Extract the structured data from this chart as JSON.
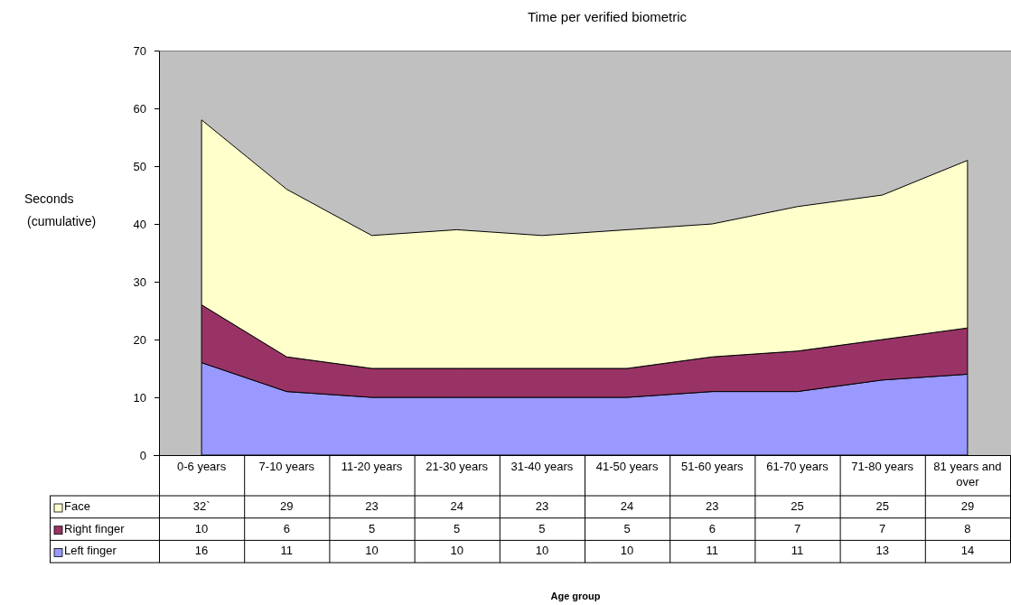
{
  "chart_data": {
    "type": "area",
    "title": "Time per verified biometric",
    "ylabel": "Seconds\n(cumulative)",
    "annotations": [
      "Age group"
    ],
    "categories": [
      "0-6 years",
      "7-10 years",
      "11-20 years",
      "21-30 years",
      "31-40 years",
      "41-50 years",
      "51-60 years",
      "61-70 years",
      "71-80 years",
      "81 years and over"
    ],
    "stacked": true,
    "ylim": [
      0,
      70
    ],
    "yticks": [
      0,
      10,
      20,
      30,
      40,
      50,
      60,
      70
    ],
    "legend": "bottom",
    "series": [
      {
        "name": "Left finger",
        "color": "#9999ff",
        "values": [
          16,
          11,
          10,
          10,
          10,
          10,
          11,
          11,
          13,
          14
        ],
        "value_labels": [
          "16",
          "11",
          "10",
          "10",
          "10",
          "10",
          "11",
          "11",
          "13",
          "14"
        ]
      },
      {
        "name": "Right finger",
        "color": "#993366",
        "values": [
          10,
          6,
          5,
          5,
          5,
          5,
          6,
          7,
          7,
          8
        ],
        "value_labels": [
          "10",
          "6",
          "5",
          "5",
          "5",
          "5",
          "6",
          "7",
          "7",
          "8"
        ]
      },
      {
        "name": "Face",
        "color": "#ffffcc",
        "values": [
          32,
          29,
          23,
          24,
          23,
          24,
          23,
          25,
          25,
          29
        ],
        "value_labels": [
          "32`",
          "29",
          "23",
          "24",
          "23",
          "24",
          "23",
          "25",
          "25",
          "29"
        ]
      }
    ]
  }
}
